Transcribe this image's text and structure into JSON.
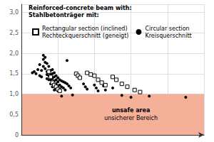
{
  "chart_data": {
    "type": "scatter",
    "legend_title": "Reinforced-concrete beam with:\nStahlbetonträger mit:",
    "xlim": [
      0,
      1.0
    ],
    "xticks": [
      0,
      0.2,
      0.4,
      0.6,
      0.8,
      1.0
    ],
    "ylim": [
      0,
      3.2
    ],
    "yticks": [
      0,
      {
        "value": 0.5,
        "label": "0,5"
      },
      {
        "value": 1.0,
        "label": "1,0"
      },
      {
        "value": 1.5,
        "label": "1,5"
      },
      {
        "value": 2.0,
        "label": "2,0"
      },
      {
        "value": 2.5,
        "label": "2,5"
      },
      {
        "value": 3.0,
        "label": "3,0"
      }
    ],
    "grid": true,
    "legend": "upper left",
    "tick_labels": "y",
    "shaded_region": {
      "ylim": [
        0,
        1.0
      ],
      "color": "#f5b09a",
      "annotations": [
        "unsafe area",
        "unsicherer Bereich"
      ]
    },
    "series": [
      {
        "name": "Rectangular section (inclined)\nRechteckquerschnitt (geneigt)",
        "marker": "open_square",
        "color": "#000000",
        "x": [
          0.15,
          0.16,
          0.17,
          0.18,
          0.19,
          0.2,
          0.21,
          0.3,
          0.31,
          0.32,
          0.36,
          0.38,
          0.4,
          0.42,
          0.44,
          0.46,
          0.5,
          0.52,
          0.55,
          0.58,
          0.62,
          0.65
        ],
        "values": [
          1.55,
          1.42,
          1.28,
          1.22,
          1.18,
          1.12,
          1.08,
          1.5,
          1.45,
          1.4,
          1.52,
          1.48,
          1.45,
          1.35,
          1.28,
          1.22,
          1.42,
          1.35,
          1.25,
          1.18,
          1.1,
          1.05
        ]
      },
      {
        "name": "Circular section\nKreisquerschnitt",
        "marker": "filled_circle",
        "color": "#000000",
        "x": [
          0.06,
          0.07,
          0.08,
          0.09,
          0.1,
          0.1,
          0.11,
          0.11,
          0.12,
          0.12,
          0.12,
          0.13,
          0.13,
          0.13,
          0.14,
          0.14,
          0.14,
          0.14,
          0.15,
          0.15,
          0.15,
          0.15,
          0.16,
          0.16,
          0.16,
          0.16,
          0.17,
          0.17,
          0.17,
          0.17,
          0.17,
          0.18,
          0.18,
          0.18,
          0.18,
          0.18,
          0.19,
          0.19,
          0.19,
          0.19,
          0.2,
          0.2,
          0.2,
          0.2,
          0.21,
          0.21,
          0.21,
          0.22,
          0.22,
          0.22,
          0.23,
          0.23,
          0.24,
          0.24,
          0.25,
          0.25,
          0.26,
          0.27,
          0.28,
          0.34,
          0.35,
          0.36,
          0.4,
          0.41,
          0.42,
          0.45,
          0.46,
          0.5,
          0.55,
          0.6,
          0.7,
          0.9
        ],
        "values": [
          1.52,
          1.55,
          1.5,
          1.6,
          1.72,
          1.45,
          1.58,
          1.42,
          1.95,
          1.85,
          1.68,
          1.9,
          1.78,
          1.62,
          1.75,
          1.55,
          1.48,
          1.38,
          1.68,
          1.55,
          1.45,
          1.35,
          1.58,
          1.48,
          1.35,
          1.25,
          1.6,
          1.5,
          1.38,
          1.28,
          1.18,
          1.52,
          1.42,
          1.32,
          1.22,
          1.1,
          1.45,
          1.35,
          1.25,
          1.15,
          1.4,
          1.3,
          1.2,
          1.08,
          1.35,
          1.22,
          1.12,
          1.32,
          1.18,
          0.95,
          1.3,
          1.15,
          1.28,
          1.1,
          1.82,
          1.25,
          1.2,
          1.15,
          0.98,
          1.25,
          1.18,
          1.12,
          1.22,
          1.15,
          1.08,
          1.2,
          1.1,
          1.15,
          0.97,
          0.92,
          0.95,
          0.92
        ]
      }
    ]
  }
}
